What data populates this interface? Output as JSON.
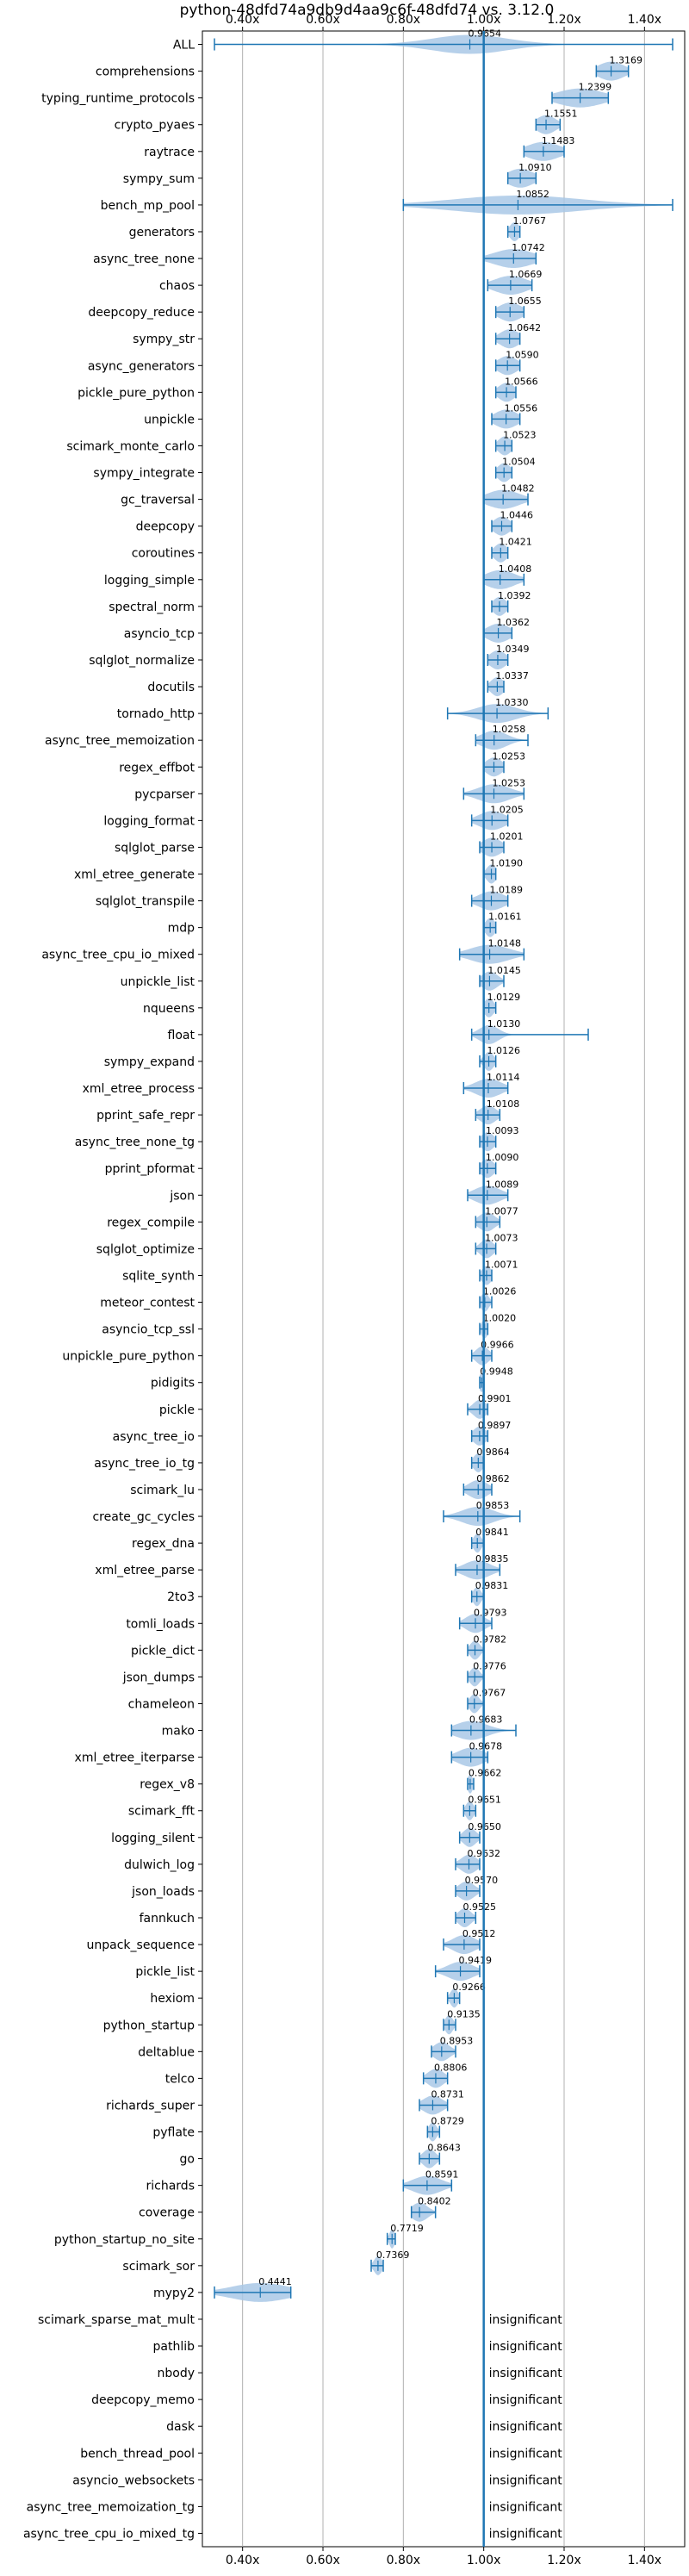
{
  "chart_data": {
    "type": "violin",
    "title": "python-48dfd74a9db9d4aa9c6f-48dfd74 vs. 3.12.0",
    "xlim": [
      0.3,
      1.5
    ],
    "xticks": [
      0.4,
      0.6,
      0.8,
      1.0,
      1.2,
      1.4
    ],
    "xtick_labels": [
      "0.40x",
      "0.60x",
      "0.80x",
      "1.00x",
      "1.20x",
      "1.40x"
    ],
    "reference_line": 1.0,
    "grid": "vertical",
    "insignificant_text": "insignificant",
    "categories": [
      {
        "name": "ALL",
        "value": "0.9654",
        "center": 0.9654,
        "min": 0.33,
        "max": 1.47,
        "spread": 0.12
      },
      {
        "name": "comprehensions",
        "value": "1.3169",
        "center": 1.3169,
        "min": 1.28,
        "max": 1.36,
        "spread": 0.04
      },
      {
        "name": "typing_runtime_protocols",
        "value": "1.2399",
        "center": 1.2399,
        "min": 1.17,
        "max": 1.31,
        "spread": 0.07
      },
      {
        "name": "crypto_pyaes",
        "value": "1.1551",
        "center": 1.1551,
        "min": 1.13,
        "max": 1.19,
        "spread": 0.03
      },
      {
        "name": "raytrace",
        "value": "1.1483",
        "center": 1.1483,
        "min": 1.1,
        "max": 1.2,
        "spread": 0.05
      },
      {
        "name": "sympy_sum",
        "value": "1.0910",
        "center": 1.091,
        "min": 1.06,
        "max": 1.13,
        "spread": 0.04
      },
      {
        "name": "bench_mp_pool",
        "value": "1.0852",
        "center": 1.0852,
        "min": 0.8,
        "max": 1.47,
        "spread": 0.2
      },
      {
        "name": "generators",
        "value": "1.0767",
        "center": 1.0767,
        "min": 1.06,
        "max": 1.09,
        "spread": 0.015
      },
      {
        "name": "async_tree_none",
        "value": "1.0742",
        "center": 1.0742,
        "min": 1.0,
        "max": 1.13,
        "spread": 0.06
      },
      {
        "name": "chaos",
        "value": "1.0669",
        "center": 1.0669,
        "min": 1.01,
        "max": 1.12,
        "spread": 0.05
      },
      {
        "name": "deepcopy_reduce",
        "value": "1.0655",
        "center": 1.0655,
        "min": 1.03,
        "max": 1.1,
        "spread": 0.035
      },
      {
        "name": "sympy_str",
        "value": "1.0642",
        "center": 1.0642,
        "min": 1.03,
        "max": 1.09,
        "spread": 0.03
      },
      {
        "name": "async_generators",
        "value": "1.0590",
        "center": 1.059,
        "min": 1.03,
        "max": 1.09,
        "spread": 0.03
      },
      {
        "name": "pickle_pure_python",
        "value": "1.0566",
        "center": 1.0566,
        "min": 1.03,
        "max": 1.08,
        "spread": 0.025
      },
      {
        "name": "unpickle",
        "value": "1.0556",
        "center": 1.0556,
        "min": 1.02,
        "max": 1.09,
        "spread": 0.035
      },
      {
        "name": "scimark_monte_carlo",
        "value": "1.0523",
        "center": 1.0523,
        "min": 1.03,
        "max": 1.07,
        "spread": 0.02
      },
      {
        "name": "sympy_integrate",
        "value": "1.0504",
        "center": 1.0504,
        "min": 1.03,
        "max": 1.07,
        "spread": 0.02
      },
      {
        "name": "gc_traversal",
        "value": "1.0482",
        "center": 1.0482,
        "min": 1.0,
        "max": 1.11,
        "spread": 0.05
      },
      {
        "name": "deepcopy",
        "value": "1.0446",
        "center": 1.0446,
        "min": 1.02,
        "max": 1.07,
        "spread": 0.025
      },
      {
        "name": "coroutines",
        "value": "1.0421",
        "center": 1.0421,
        "min": 1.02,
        "max": 1.06,
        "spread": 0.02
      },
      {
        "name": "logging_simple",
        "value": "1.0408",
        "center": 1.0408,
        "min": 1.0,
        "max": 1.1,
        "spread": 0.045
      },
      {
        "name": "spectral_norm",
        "value": "1.0392",
        "center": 1.0392,
        "min": 1.02,
        "max": 1.06,
        "spread": 0.02
      },
      {
        "name": "asyncio_tcp",
        "value": "1.0362",
        "center": 1.0362,
        "min": 1.0,
        "max": 1.07,
        "spread": 0.035
      },
      {
        "name": "sqlglot_normalize",
        "value": "1.0349",
        "center": 1.0349,
        "min": 1.01,
        "max": 1.06,
        "spread": 0.025
      },
      {
        "name": "docutils",
        "value": "1.0337",
        "center": 1.0337,
        "min": 1.01,
        "max": 1.05,
        "spread": 0.02
      },
      {
        "name": "tornado_http",
        "value": "1.0330",
        "center": 1.033,
        "min": 0.91,
        "max": 1.16,
        "spread": 0.06
      },
      {
        "name": "async_tree_memoization",
        "value": "1.0258",
        "center": 1.0258,
        "min": 0.98,
        "max": 1.11,
        "spread": 0.04
      },
      {
        "name": "regex_effbot",
        "value": "1.0253",
        "center": 1.0253,
        "min": 1.0,
        "max": 1.05,
        "spread": 0.025
      },
      {
        "name": "pycparser",
        "value": "1.0253",
        "center": 1.0253,
        "min": 0.95,
        "max": 1.1,
        "spread": 0.05
      },
      {
        "name": "logging_format",
        "value": "1.0205",
        "center": 1.0205,
        "min": 0.97,
        "max": 1.06,
        "spread": 0.04
      },
      {
        "name": "sqlglot_parse",
        "value": "1.0201",
        "center": 1.0201,
        "min": 0.99,
        "max": 1.05,
        "spread": 0.03
      },
      {
        "name": "xml_etree_generate",
        "value": "1.0190",
        "center": 1.019,
        "min": 1.0,
        "max": 1.03,
        "spread": 0.015
      },
      {
        "name": "sqlglot_transpile",
        "value": "1.0189",
        "center": 1.0189,
        "min": 0.97,
        "max": 1.06,
        "spread": 0.04
      },
      {
        "name": "mdp",
        "value": "1.0161",
        "center": 1.0161,
        "min": 1.0,
        "max": 1.03,
        "spread": 0.015
      },
      {
        "name": "async_tree_cpu_io_mixed",
        "value": "1.0148",
        "center": 1.0148,
        "min": 0.94,
        "max": 1.1,
        "spread": 0.06
      },
      {
        "name": "unpickle_list",
        "value": "1.0145",
        "center": 1.0145,
        "min": 0.99,
        "max": 1.05,
        "spread": 0.025
      },
      {
        "name": "nqueens",
        "value": "1.0129",
        "center": 1.0129,
        "min": 1.0,
        "max": 1.03,
        "spread": 0.015
      },
      {
        "name": "float",
        "value": "1.0130",
        "center": 1.013,
        "min": 0.97,
        "max": 1.26,
        "spread": 0.03
      },
      {
        "name": "sympy_expand",
        "value": "1.0126",
        "center": 1.0126,
        "min": 0.99,
        "max": 1.03,
        "spread": 0.015
      },
      {
        "name": "xml_etree_process",
        "value": "1.0114",
        "center": 1.0114,
        "min": 0.95,
        "max": 1.06,
        "spread": 0.04
      },
      {
        "name": "pprint_safe_repr",
        "value": "1.0108",
        "center": 1.0108,
        "min": 0.98,
        "max": 1.04,
        "spread": 0.025
      },
      {
        "name": "async_tree_none_tg",
        "value": "1.0093",
        "center": 1.0093,
        "min": 0.99,
        "max": 1.03,
        "spread": 0.02
      },
      {
        "name": "pprint_pformat",
        "value": "1.0090",
        "center": 1.009,
        "min": 0.99,
        "max": 1.03,
        "spread": 0.02
      },
      {
        "name": "json",
        "value": "1.0089",
        "center": 1.0089,
        "min": 0.96,
        "max": 1.06,
        "spread": 0.04
      },
      {
        "name": "regex_compile",
        "value": "1.0077",
        "center": 1.0077,
        "min": 0.98,
        "max": 1.04,
        "spread": 0.025
      },
      {
        "name": "sqlglot_optimize",
        "value": "1.0073",
        "center": 1.0073,
        "min": 0.98,
        "max": 1.03,
        "spread": 0.02
      },
      {
        "name": "sqlite_synth",
        "value": "1.0071",
        "center": 1.0071,
        "min": 0.99,
        "max": 1.02,
        "spread": 0.015
      },
      {
        "name": "meteor_contest",
        "value": "1.0026",
        "center": 1.0026,
        "min": 0.99,
        "max": 1.02,
        "spread": 0.012
      },
      {
        "name": "asyncio_tcp_ssl",
        "value": "1.0020",
        "center": 1.002,
        "min": 0.99,
        "max": 1.01,
        "spread": 0.01
      },
      {
        "name": "unpickle_pure_python",
        "value": "0.9966",
        "center": 0.9966,
        "min": 0.97,
        "max": 1.02,
        "spread": 0.02
      },
      {
        "name": "pidigits",
        "value": "0.9948",
        "center": 0.9948,
        "min": 0.99,
        "max": 1.0,
        "spread": 0.008
      },
      {
        "name": "pickle",
        "value": "0.9901",
        "center": 0.9901,
        "min": 0.96,
        "max": 1.01,
        "spread": 0.02
      },
      {
        "name": "async_tree_io",
        "value": "0.9897",
        "center": 0.9897,
        "min": 0.97,
        "max": 1.01,
        "spread": 0.02
      },
      {
        "name": "async_tree_io_tg",
        "value": "0.9864",
        "center": 0.9864,
        "min": 0.97,
        "max": 1.0,
        "spread": 0.015
      },
      {
        "name": "scimark_lu",
        "value": "0.9862",
        "center": 0.9862,
        "min": 0.95,
        "max": 1.02,
        "spread": 0.03
      },
      {
        "name": "create_gc_cycles",
        "value": "0.9853",
        "center": 0.9853,
        "min": 0.9,
        "max": 1.09,
        "spread": 0.05
      },
      {
        "name": "regex_dna",
        "value": "0.9841",
        "center": 0.9841,
        "min": 0.97,
        "max": 1.0,
        "spread": 0.012
      },
      {
        "name": "xml_etree_parse",
        "value": "0.9835",
        "center": 0.9835,
        "min": 0.93,
        "max": 1.04,
        "spread": 0.04
      },
      {
        "name": "2to3",
        "value": "0.9831",
        "center": 0.9831,
        "min": 0.97,
        "max": 1.0,
        "spread": 0.012
      },
      {
        "name": "tomli_loads",
        "value": "0.9793",
        "center": 0.9793,
        "min": 0.94,
        "max": 1.02,
        "spread": 0.03
      },
      {
        "name": "pickle_dict",
        "value": "0.9782",
        "center": 0.9782,
        "min": 0.96,
        "max": 1.0,
        "spread": 0.015
      },
      {
        "name": "json_dumps",
        "value": "0.9776",
        "center": 0.9776,
        "min": 0.96,
        "max": 1.0,
        "spread": 0.015
      },
      {
        "name": "chameleon",
        "value": "0.9767",
        "center": 0.9767,
        "min": 0.96,
        "max": 1.0,
        "spread": 0.015
      },
      {
        "name": "mako",
        "value": "0.9683",
        "center": 0.9683,
        "min": 0.92,
        "max": 1.08,
        "spread": 0.05
      },
      {
        "name": "xml_etree_iterparse",
        "value": "0.9678",
        "center": 0.9678,
        "min": 0.92,
        "max": 1.01,
        "spread": 0.04
      },
      {
        "name": "regex_v8",
        "value": "0.9662",
        "center": 0.9662,
        "min": 0.96,
        "max": 0.975,
        "spread": 0.008
      },
      {
        "name": "scimark_fft",
        "value": "0.9651",
        "center": 0.9651,
        "min": 0.95,
        "max": 0.98,
        "spread": 0.012
      },
      {
        "name": "logging_silent",
        "value": "0.9650",
        "center": 0.965,
        "min": 0.94,
        "max": 0.99,
        "spread": 0.02
      },
      {
        "name": "dulwich_log",
        "value": "0.9632",
        "center": 0.9632,
        "min": 0.93,
        "max": 0.99,
        "spread": 0.025
      },
      {
        "name": "json_loads",
        "value": "0.9570",
        "center": 0.957,
        "min": 0.93,
        "max": 0.99,
        "spread": 0.025
      },
      {
        "name": "fannkuch",
        "value": "0.9525",
        "center": 0.9525,
        "min": 0.93,
        "max": 0.98,
        "spread": 0.02
      },
      {
        "name": "unpack_sequence",
        "value": "0.9512",
        "center": 0.9512,
        "min": 0.9,
        "max": 0.99,
        "spread": 0.035
      },
      {
        "name": "pickle_list",
        "value": "0.9419",
        "center": 0.9419,
        "min": 0.88,
        "max": 0.99,
        "spread": 0.04
      },
      {
        "name": "hexiom",
        "value": "0.9266",
        "center": 0.9266,
        "min": 0.91,
        "max": 0.94,
        "spread": 0.012
      },
      {
        "name": "python_startup",
        "value": "0.9135",
        "center": 0.9135,
        "min": 0.9,
        "max": 0.93,
        "spread": 0.012
      },
      {
        "name": "deltablue",
        "value": "0.8953",
        "center": 0.8953,
        "min": 0.87,
        "max": 0.93,
        "spread": 0.025
      },
      {
        "name": "telco",
        "value": "0.8806",
        "center": 0.8806,
        "min": 0.85,
        "max": 0.91,
        "spread": 0.025
      },
      {
        "name": "richards_super",
        "value": "0.8731",
        "center": 0.8731,
        "min": 0.84,
        "max": 0.91,
        "spread": 0.03
      },
      {
        "name": "pyflate",
        "value": "0.8729",
        "center": 0.8729,
        "min": 0.86,
        "max": 0.89,
        "spread": 0.012
      },
      {
        "name": "go",
        "value": "0.8643",
        "center": 0.8643,
        "min": 0.84,
        "max": 0.89,
        "spread": 0.02
      },
      {
        "name": "richards",
        "value": "0.8591",
        "center": 0.8591,
        "min": 0.8,
        "max": 0.92,
        "spread": 0.045
      },
      {
        "name": "coverage",
        "value": "0.8402",
        "center": 0.8402,
        "min": 0.82,
        "max": 0.88,
        "spread": 0.025
      },
      {
        "name": "python_startup_no_site",
        "value": "0.7719",
        "center": 0.7719,
        "min": 0.76,
        "max": 0.78,
        "spread": 0.008
      },
      {
        "name": "scimark_sor",
        "value": "0.7369",
        "center": 0.7369,
        "min": 0.72,
        "max": 0.75,
        "spread": 0.012
      },
      {
        "name": "mypy2",
        "value": "0.4441",
        "center": 0.4441,
        "min": 0.33,
        "max": 0.52,
        "spread": 0.09
      },
      {
        "name": "scimark_sparse_mat_mult",
        "insignificant": true
      },
      {
        "name": "pathlib",
        "insignificant": true
      },
      {
        "name": "nbody",
        "insignificant": true
      },
      {
        "name": "deepcopy_memo",
        "insignificant": true
      },
      {
        "name": "dask",
        "insignificant": true
      },
      {
        "name": "bench_thread_pool",
        "insignificant": true
      },
      {
        "name": "asyncio_websockets",
        "insignificant": true
      },
      {
        "name": "async_tree_memoization_tg",
        "insignificant": true
      },
      {
        "name": "async_tree_cpu_io_mixed_tg",
        "insignificant": true
      }
    ]
  },
  "colors": {
    "violin_fill": "#a9c8e6",
    "line": "#1f77b4",
    "grid": "#b0b0b0",
    "axis": "#000000"
  }
}
